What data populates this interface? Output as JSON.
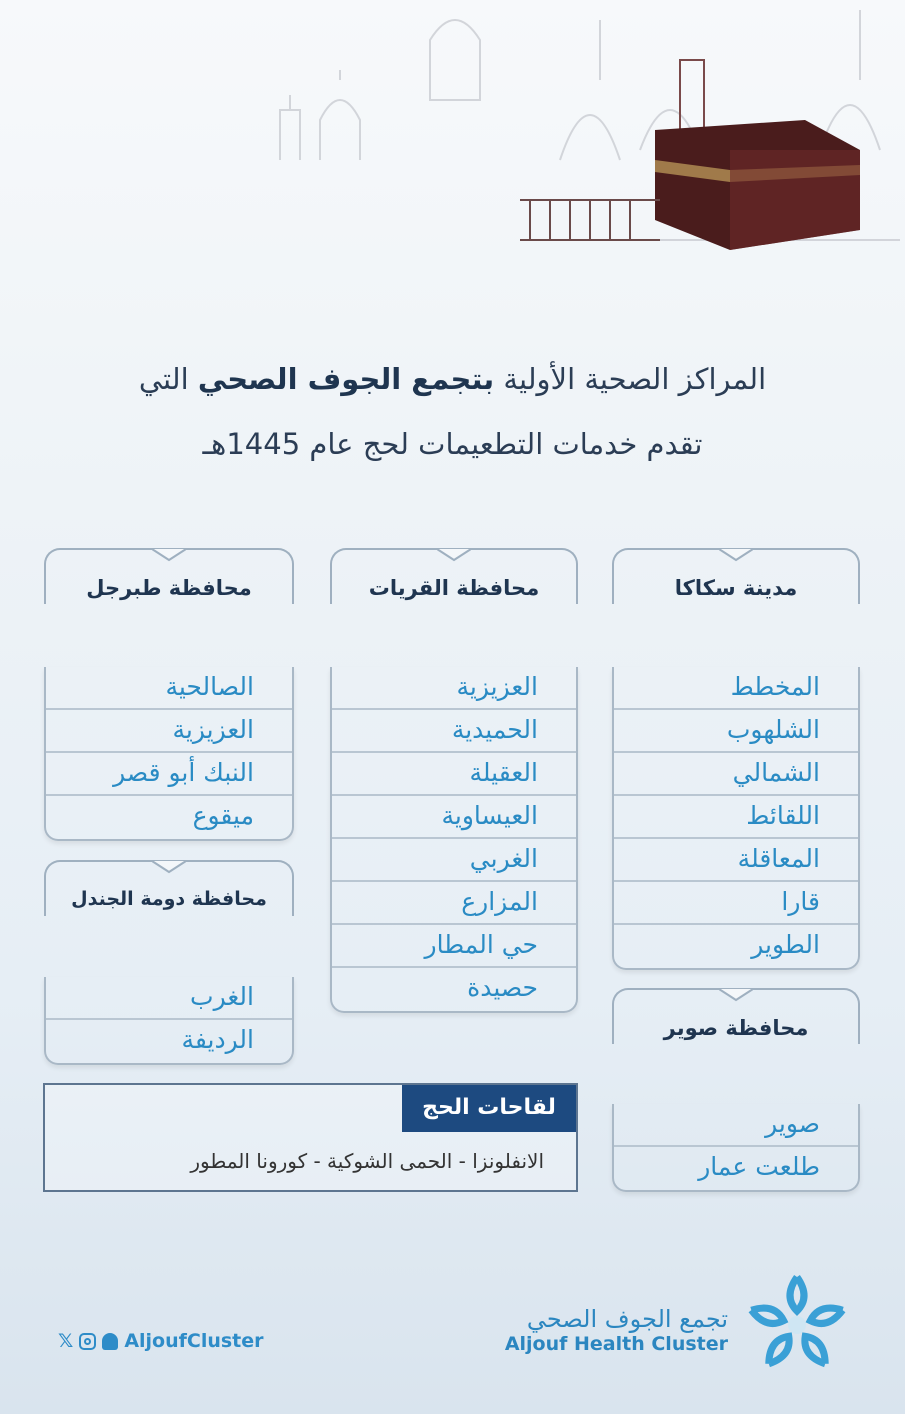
{
  "title": {
    "line1_start": "المراكز الصحية الأولية ",
    "line1_bold": "بتجمع الجوف الصحي",
    "line1_end": " التي",
    "line2": "تقدم خدمات التطعيمات لحج عام 1445هـ"
  },
  "sakaka": {
    "title": "مدينة سكاكا",
    "items": [
      "المخطط",
      "الشلهوب",
      "الشمالي",
      "اللقائط",
      "المعاقلة",
      "قارا",
      "الطوير"
    ]
  },
  "qurayyat": {
    "title": "محافظة القريات",
    "items": [
      "العزيزية",
      "الحميدية",
      "العقيلة",
      "العيساوية",
      "الغربي",
      "المزارع",
      "حي المطار",
      "حصيدة"
    ]
  },
  "tabarjal": {
    "title": "محافظة طبرجل",
    "items": [
      "الصالحية",
      "العزيزية",
      "النبك أبو قصر",
      "ميقوع"
    ]
  },
  "dumat": {
    "title": "محافظة دومة الجندل",
    "items": [
      "الغرب",
      "الرديفة"
    ]
  },
  "suwayr": {
    "title": "محافظة صوير",
    "items": [
      "صوير",
      "طلعت عمار"
    ]
  },
  "vaccines": {
    "title": "لقاحات الحج",
    "list": "الانفلونزا - الحمى الشوكية - كورونا المطور"
  },
  "footer": {
    "handle": "AljoufCluster",
    "social_icons": [
      "x-icon",
      "instagram-icon",
      "snapchat-icon"
    ],
    "brand_ar": "تجمع الجوف الصحي",
    "brand_en": "Aljouf Health Cluster"
  },
  "colors": {
    "navy": "#1d4a80",
    "item_blue": "#2a8bc4",
    "kaaba": "#4a1c1c"
  }
}
